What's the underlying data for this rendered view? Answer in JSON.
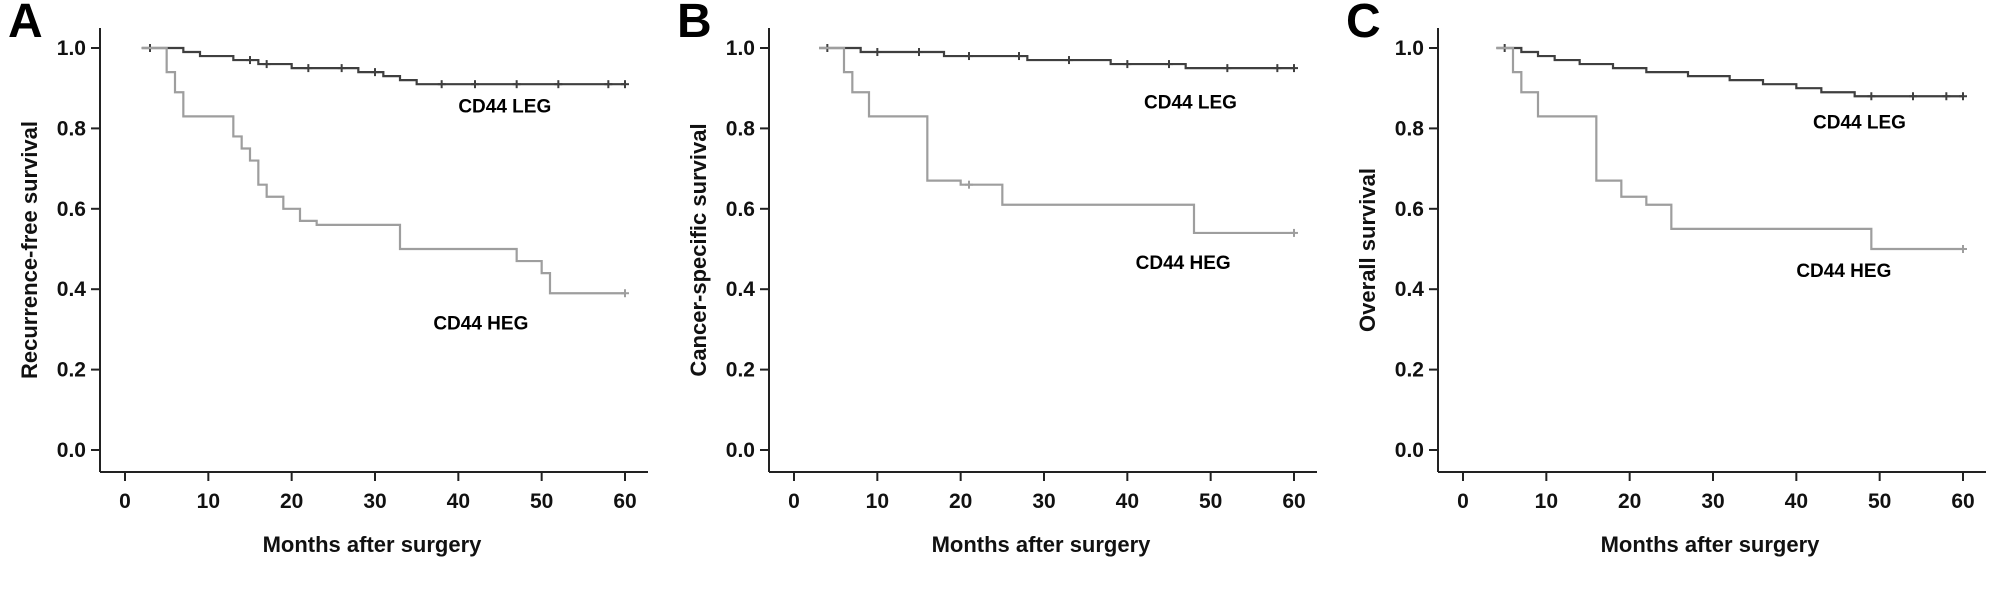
{
  "figure": {
    "x_ticks": [
      0,
      10,
      20,
      30,
      40,
      50,
      60
    ],
    "y_ticks": [
      "0.0",
      "0.2",
      "0.4",
      "0.6",
      "0.8",
      "1.0"
    ],
    "colors": {
      "leg": "#3f3f3f",
      "heg": "#9e9e9e",
      "axis": "#222222"
    }
  },
  "chart_data": [
    {
      "type": "line",
      "panel": "A",
      "ylabel": "Recurrence-free survival",
      "xlabel": "Months after surgery",
      "xlim": [
        0,
        62
      ],
      "ylim": [
        0.0,
        1.0
      ],
      "series": [
        {
          "name": "CD44 LEG",
          "color": "#3f3f3f",
          "steps": [
            [
              2,
              1.0
            ],
            [
              7,
              0.99
            ],
            [
              9,
              0.98
            ],
            [
              13,
              0.97
            ],
            [
              16,
              0.96
            ],
            [
              20,
              0.95
            ],
            [
              28,
              0.94
            ],
            [
              31,
              0.93
            ],
            [
              33,
              0.92
            ],
            [
              35,
              0.91
            ],
            [
              60,
              0.91
            ]
          ],
          "censors": [
            3,
            15,
            17,
            22,
            26,
            30,
            38,
            42,
            47,
            52,
            58,
            60
          ],
          "label_pos": [
            40,
            0.84
          ]
        },
        {
          "name": "CD44 HEG",
          "color": "#9e9e9e",
          "steps": [
            [
              2,
              1.0
            ],
            [
              5,
              0.94
            ],
            [
              6,
              0.89
            ],
            [
              7,
              0.83
            ],
            [
              13,
              0.78
            ],
            [
              14,
              0.75
            ],
            [
              15,
              0.72
            ],
            [
              16,
              0.66
            ],
            [
              17,
              0.63
            ],
            [
              19,
              0.6
            ],
            [
              21,
              0.57
            ],
            [
              23,
              0.56
            ],
            [
              33,
              0.5
            ],
            [
              47,
              0.47
            ],
            [
              50,
              0.44
            ],
            [
              51,
              0.39
            ],
            [
              60,
              0.39
            ]
          ],
          "censors": [
            60
          ],
          "label_pos": [
            37,
            0.3
          ]
        }
      ]
    },
    {
      "type": "line",
      "panel": "B",
      "ylabel": "Cancer-specific survival",
      "xlabel": "Months after surgery",
      "xlim": [
        0,
        62
      ],
      "ylim": [
        0.0,
        1.0
      ],
      "series": [
        {
          "name": "CD44 LEG",
          "color": "#3f3f3f",
          "steps": [
            [
              3,
              1.0
            ],
            [
              8,
              0.99
            ],
            [
              18,
              0.98
            ],
            [
              28,
              0.97
            ],
            [
              38,
              0.96
            ],
            [
              47,
              0.95
            ],
            [
              60,
              0.95
            ]
          ],
          "censors": [
            4,
            10,
            15,
            21,
            27,
            33,
            40,
            45,
            52,
            58,
            60
          ],
          "label_pos": [
            42,
            0.85
          ]
        },
        {
          "name": "CD44 HEG",
          "color": "#9e9e9e",
          "steps": [
            [
              3,
              1.0
            ],
            [
              6,
              0.94
            ],
            [
              7,
              0.89
            ],
            [
              9,
              0.83
            ],
            [
              16,
              0.67
            ],
            [
              20,
              0.66
            ],
            [
              25,
              0.61
            ],
            [
              48,
              0.54
            ],
            [
              60,
              0.54
            ]
          ],
          "censors": [
            21,
            60
          ],
          "label_pos": [
            41,
            0.45
          ]
        }
      ]
    },
    {
      "type": "line",
      "panel": "C",
      "ylabel": "Overall survival",
      "xlabel": "Months after surgery",
      "xlim": [
        0,
        62
      ],
      "ylim": [
        0.0,
        1.0
      ],
      "series": [
        {
          "name": "CD44 LEG",
          "color": "#3f3f3f",
          "steps": [
            [
              4,
              1.0
            ],
            [
              7,
              0.99
            ],
            [
              9,
              0.98
            ],
            [
              11,
              0.97
            ],
            [
              14,
              0.96
            ],
            [
              18,
              0.95
            ],
            [
              22,
              0.94
            ],
            [
              27,
              0.93
            ],
            [
              32,
              0.92
            ],
            [
              36,
              0.91
            ],
            [
              40,
              0.9
            ],
            [
              43,
              0.89
            ],
            [
              47,
              0.88
            ],
            [
              60,
              0.88
            ]
          ],
          "censors": [
            5,
            49,
            54,
            58,
            60
          ],
          "label_pos": [
            42,
            0.8
          ]
        },
        {
          "name": "CD44 HEG",
          "color": "#9e9e9e",
          "steps": [
            [
              4,
              1.0
            ],
            [
              6,
              0.94
            ],
            [
              7,
              0.89
            ],
            [
              9,
              0.83
            ],
            [
              16,
              0.67
            ],
            [
              19,
              0.63
            ],
            [
              22,
              0.61
            ],
            [
              25,
              0.55
            ],
            [
              49,
              0.5
            ],
            [
              60,
              0.5
            ]
          ],
          "censors": [
            60
          ],
          "label_pos": [
            40,
            0.43
          ]
        }
      ]
    }
  ]
}
